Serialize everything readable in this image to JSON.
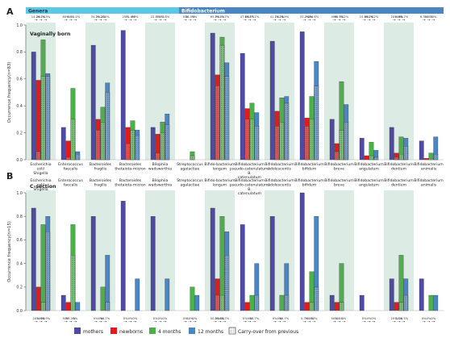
{
  "panel_labels": {
    "a": "A",
    "b": "B"
  },
  "header": {
    "genera": "Genera",
    "bifido": "Bifidobacterium"
  },
  "colors": {
    "mothers": "#4f4aa3",
    "newborns": "#e31a1c",
    "m4": "#4daf4a",
    "m12": "#4a86c5",
    "shade": "#dcebe4",
    "band_genera": "#5bc8e6",
    "band_bifido": "#4a86c5"
  },
  "legend": {
    "mothers": "mothers",
    "newborns": "newborns",
    "m4": "4 months",
    "m12": "12 months",
    "carry": "Carry-over from previous"
  },
  "chart_data": [
    {
      "type": "bar",
      "title": "Vaginally born",
      "ylabel": "Occurrence frequency(n=83)",
      "ylim": [
        0,
        1
      ],
      "yticks": [
        "0.0",
        "0.2",
        "0.4",
        "0.6",
        "0.8",
        "1.0"
      ],
      "categories": [
        "Escherichia coli/ Shigella",
        "Enterococcus faecalis",
        "Bacteroides fragilis",
        "Bacteroides thetaiota-micron",
        "Bilophila wadsworthia",
        "Streptococcus agalactiae",
        "Bifido-bacterium longum",
        "Bifidobacterium pseudo-catenulatum/ B. catenulatum",
        "Bifidobacterium adolescentis",
        "Bifidobacterium bifidum",
        "Bifidobacterium breve",
        "Bifidobacterium angulatum",
        "Bifidobacterium dentium",
        "Bifidobacterium animalis"
      ],
      "transmission_labels": [
        [
          "14.2%",
          "36.1%",
          "70.3%"
        ],
        [
          "60%",
          "60%",
          "11.4%"
        ],
        [
          "34.3%",
          "70.2%",
          "100%"
        ],
        [
          "25%",
          "71.4%",
          "89%"
        ],
        [
          "22.8%",
          "75%",
          "73.8%"
        ],
        [
          "0%",
          "38.4%",
          "0%"
        ],
        [
          "65.7%",
          "94.3%",
          "71.7%"
        ],
        [
          "47.1%",
          "66.7%",
          "57.1%"
        ],
        [
          "41.1%",
          "74.2%",
          "78.9%"
        ],
        [
          "31.2%",
          "92%",
          "84.6%"
        ],
        [
          "40%",
          "60.7%",
          "90.2%"
        ],
        [
          "15.4%",
          "66.7%",
          "16.2%"
        ],
        [
          "20%",
          "100%",
          "60.7%"
        ],
        [
          "6.5%",
          "100%",
          "20%"
        ]
      ],
      "series": [
        {
          "name": "mothers",
          "values": [
            0.8,
            0.24,
            0.85,
            0.96,
            0.24,
            0.0,
            0.94,
            0.79,
            0.88,
            0.95,
            0.3,
            0.16,
            0.24,
            0.14
          ]
        },
        {
          "name": "newborns",
          "values": [
            0.59,
            0.14,
            0.3,
            0.24,
            0.19,
            0.0,
            0.63,
            0.38,
            0.36,
            0.31,
            0.12,
            0.03,
            0.05,
            0.01
          ]
        },
        {
          "name": "4 months",
          "values": [
            0.89,
            0.53,
            0.39,
            0.29,
            0.28,
            0.06,
            0.91,
            0.42,
            0.46,
            0.47,
            0.58,
            0.13,
            0.17,
            0.05
          ]
        },
        {
          "name": "12 months",
          "values": [
            0.64,
            0.06,
            0.57,
            0.22,
            0.34,
            0.0,
            0.72,
            0.35,
            0.47,
            0.73,
            0.41,
            0.07,
            0.16,
            0.17
          ]
        }
      ],
      "carry_over": [
        [
          0.0,
          0.06,
          0.62,
          0.62
        ],
        [
          0.0,
          0.02,
          0.3,
          0.04
        ],
        [
          0.0,
          0.22,
          0.28,
          0.5
        ],
        [
          0.0,
          0.12,
          0.22,
          0.18
        ],
        [
          0.0,
          0.05,
          0.2,
          0.26
        ],
        [
          0.0,
          0.0,
          0.03,
          0.0
        ],
        [
          0.0,
          0.55,
          0.85,
          0.62
        ],
        [
          0.0,
          0.3,
          0.3,
          0.25
        ],
        [
          0.0,
          0.25,
          0.28,
          0.42
        ],
        [
          0.0,
          0.25,
          0.3,
          0.55
        ],
        [
          0.0,
          0.06,
          0.22,
          0.28
        ],
        [
          0.0,
          0.0,
          0.03,
          0.02
        ],
        [
          0.0,
          0.02,
          0.04,
          0.1
        ],
        [
          0.0,
          0.0,
          0.01,
          0.04
        ]
      ],
      "shaded": [
        0,
        2,
        4,
        6,
        8,
        10,
        12
      ]
    },
    {
      "type": "bar",
      "title": "C-section",
      "ylabel": "Occurrence frequency(n=15)",
      "ylim": [
        0,
        1
      ],
      "yticks": [
        "0.0",
        "0.2",
        "0.4",
        "0.6",
        "0.8",
        "1.0"
      ],
      "categories": [
        "Escherichia coli/ Shigella",
        "Enterococcus faecalis",
        "Bacteroides fragilis",
        "Bacteroides thetaiota-micron",
        "Bilophila wadsworthia",
        "Streptococcus agalactiae",
        "Bifido-bacterium longum",
        "Bifidobacterium pseudo-catenulatum/ B. catenulatum",
        "Bifidobacterium adolescentis",
        "Bifidobacterium bifidum",
        "Bifidobacterium breve",
        "Bifidobacterium angulatum",
        "Bifidobacterium dentium",
        "Bifidobacterium animalis"
      ],
      "transmission_labels": [
        [
          "20%",
          "100%",
          "90.9%"
        ],
        [
          "50%",
          "87.5%",
          "0%"
        ],
        [
          "0%",
          "0%",
          "66.7%"
        ],
        [
          "0%",
          "0%",
          "0%"
        ],
        [
          "0%",
          "0%",
          "0%"
        ],
        [
          "0%",
          "50%",
          "0%"
        ],
        [
          "50.0%",
          "50.0%",
          "66.7%"
        ],
        [
          "0%",
          "0%",
          "66.7%"
        ],
        [
          "0%",
          "0%",
          "66.7%"
        ],
        [
          "0.7%",
          "100%",
          "60%"
        ],
        [
          "50%",
          "100%",
          "0%"
        ],
        [
          "0%",
          "0%",
          "0%"
        ],
        [
          "20%",
          "50%",
          "28.5%"
        ],
        [
          "0%",
          "0%",
          "0%"
        ]
      ],
      "series": [
        {
          "name": "mothers",
          "values": [
            0.87,
            0.13,
            0.8,
            0.93,
            0.8,
            0.0,
            0.87,
            0.73,
            0.8,
            1.0,
            0.13,
            0.13,
            0.27,
            0.27
          ]
        },
        {
          "name": "newborns",
          "values": [
            0.2,
            0.07,
            0.0,
            0.0,
            0.0,
            0.0,
            0.27,
            0.07,
            0.0,
            0.07,
            0.07,
            0.0,
            0.07,
            0.0
          ]
        },
        {
          "name": "4 months",
          "values": [
            0.73,
            0.73,
            0.2,
            0.0,
            0.0,
            0.2,
            0.8,
            0.13,
            0.13,
            0.33,
            0.4,
            0.0,
            0.47,
            0.13
          ]
        },
        {
          "name": "12 months",
          "values": [
            0.8,
            0.07,
            0.47,
            0.27,
            0.27,
            0.13,
            0.67,
            0.4,
            0.4,
            0.8,
            0.0,
            0.0,
            0.27,
            0.13
          ]
        }
      ],
      "carry_over": [
        [
          0.0,
          0.0,
          0.07,
          0.67
        ],
        [
          0.0,
          0.0,
          0.47,
          0.0
        ],
        [
          0.0,
          0.0,
          0.0,
          0.07
        ],
        [
          0.0,
          0.0,
          0.0,
          0.0
        ],
        [
          0.0,
          0.0,
          0.0,
          0.0
        ],
        [
          0.0,
          0.0,
          0.0,
          0.0
        ],
        [
          0.0,
          0.13,
          0.13,
          0.47
        ],
        [
          0.0,
          0.0,
          0.0,
          0.13
        ],
        [
          0.0,
          0.0,
          0.0,
          0.13
        ],
        [
          0.0,
          0.0,
          0.07,
          0.2
        ],
        [
          0.0,
          0.0,
          0.07,
          0.0
        ],
        [
          0.0,
          0.0,
          0.0,
          0.0
        ],
        [
          0.0,
          0.0,
          0.07,
          0.13
        ],
        [
          0.0,
          0.0,
          0.0,
          0.0
        ]
      ],
      "shaded": [
        0,
        2,
        4,
        6,
        8,
        10,
        12
      ]
    }
  ]
}
